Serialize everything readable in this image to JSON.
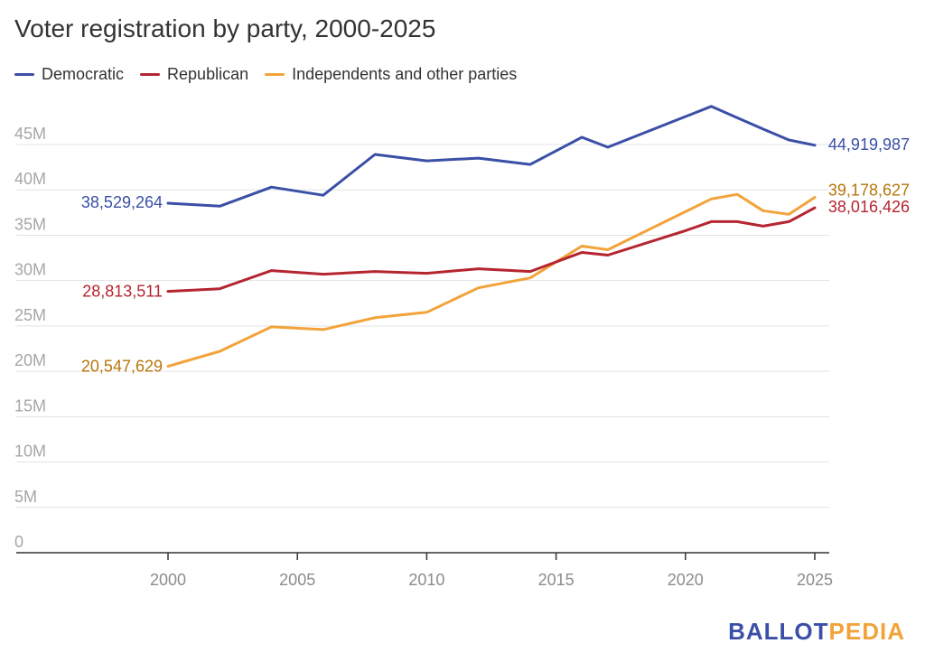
{
  "title": "Voter registration by party, 2000-2025",
  "brand": {
    "part1": "BALLOT",
    "part2": "PEDIA",
    "color1": "#3a4fa6",
    "color2": "#f2a33a"
  },
  "chart_data": {
    "type": "line",
    "title": "Voter registration by party, 2000-2025",
    "xlabel": "",
    "ylabel": "",
    "xlim": [
      1995,
      2025.5
    ],
    "ylim": [
      0,
      45000000
    ],
    "grid": true,
    "legend_position": "top-left",
    "x_ticks": [
      2000,
      2005,
      2010,
      2015,
      2020,
      2025
    ],
    "x_tick_labels": [
      "2000",
      "2005",
      "2010",
      "2015",
      "2020",
      "2025"
    ],
    "y_ticks": [
      0,
      5000000,
      10000000,
      15000000,
      20000000,
      25000000,
      30000000,
      35000000,
      40000000,
      45000000
    ],
    "y_tick_labels": [
      "0",
      "5M",
      "10M",
      "15M",
      "20M",
      "25M",
      "30M",
      "35M",
      "40M",
      "45M"
    ],
    "series": [
      {
        "name": "Democratic",
        "color": "#3a4fa6",
        "label_color": "#3a4fa6",
        "x": [
          2000,
          2002,
          2004,
          2006,
          2008,
          2010,
          2012,
          2014,
          2016,
          2017,
          2021,
          2023,
          2024,
          2025
        ],
        "y": [
          38529264,
          38200000,
          40300000,
          39400000,
          43900000,
          43200000,
          43500000,
          42800000,
          45800000,
          44700000,
          49200000,
          46700000,
          45500000,
          44919987
        ],
        "start_label": "38,529,264",
        "end_label": "44,919,987"
      },
      {
        "name": "Republican",
        "color": "#b5252f",
        "label_color": "#b5252f",
        "x": [
          2000,
          2002,
          2004,
          2006,
          2008,
          2010,
          2012,
          2014,
          2016,
          2017,
          2020,
          2021,
          2022,
          2023,
          2024,
          2025
        ],
        "y": [
          28813511,
          29100000,
          31100000,
          30700000,
          31000000,
          30800000,
          31300000,
          31000000,
          33100000,
          32800000,
          35500000,
          36500000,
          36500000,
          36000000,
          36500000,
          38016426
        ],
        "start_label": "28,813,511",
        "end_label": "38,016,426"
      },
      {
        "name": "Independents and other parties",
        "color": "#f2a33a",
        "label_color": "#b8750b",
        "x": [
          2000,
          2002,
          2004,
          2006,
          2008,
          2010,
          2012,
          2014,
          2016,
          2017,
          2021,
          2022,
          2023,
          2024,
          2025
        ],
        "y": [
          20547629,
          22200000,
          24900000,
          24600000,
          25900000,
          26500000,
          29200000,
          30300000,
          33800000,
          33400000,
          39000000,
          39500000,
          37700000,
          37300000,
          39178627
        ],
        "start_label": "20,547,629",
        "end_label": "39,178,627"
      }
    ]
  }
}
